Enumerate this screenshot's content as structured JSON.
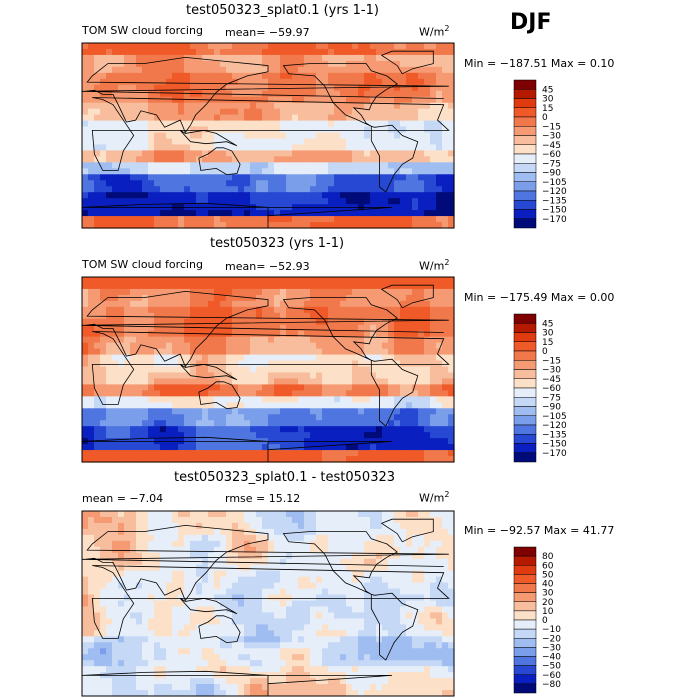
{
  "season": "DJF",
  "chart_data": [
    {
      "type": "heatmap",
      "title": "test050323_splat0.1 (yrs 1-1)",
      "variable": "TOM SW cloud forcing",
      "mean_text": "mean= −59.97",
      "units": "W/m",
      "units_sup": "2",
      "minmax_text": "Min = −187.51 Max =    0.10",
      "levels": [
        "45",
        "30",
        "15",
        "0",
        "−15",
        "−30",
        "−45",
        "−60",
        "−75",
        "−90",
        "−105",
        "−120",
        "−135",
        "−150",
        "−170"
      ],
      "colors": [
        "#7f0000",
        "#b51a00",
        "#e03a10",
        "#f05a28",
        "#f0784a",
        "#f59a72",
        "#f8bd9c",
        "#fde0c8",
        "#e6eefa",
        "#c5d8f5",
        "#9fbdf0",
        "#7a9eea",
        "#4f75e0",
        "#2648d2",
        "#0a1fbf",
        "#000a78"
      ]
    },
    {
      "type": "heatmap",
      "title": "test050323 (yrs 1-1)",
      "variable": "TOM SW cloud forcing",
      "mean_text": "mean= −52.93",
      "units": "W/m",
      "units_sup": "2",
      "minmax_text": "Min = −175.49 Max =    0.00",
      "levels": [
        "45",
        "30",
        "15",
        "0",
        "−15",
        "−30",
        "−45",
        "−60",
        "−75",
        "−90",
        "−105",
        "−120",
        "−135",
        "−150",
        "−170"
      ],
      "colors": [
        "#7f0000",
        "#b51a00",
        "#e03a10",
        "#f05a28",
        "#f0784a",
        "#f59a72",
        "#f8bd9c",
        "#fde0c8",
        "#e6eefa",
        "#c5d8f5",
        "#9fbdf0",
        "#7a9eea",
        "#4f75e0",
        "#2648d2",
        "#0a1fbf",
        "#000a78"
      ]
    },
    {
      "type": "heatmap",
      "title": "test050323_splat0.1 - test050323",
      "mean_text": "mean =   −7.04",
      "rmse_text": "rmse =  15.12",
      "units": "W/m",
      "units_sup": "2",
      "minmax_text": "Min = −92.57 Max =  41.77",
      "levels": [
        "80",
        "60",
        "50",
        "40",
        "30",
        "20",
        "10",
        "0",
        "−10",
        "−20",
        "−30",
        "−40",
        "−50",
        "−60",
        "−80"
      ],
      "colors": [
        "#7f0000",
        "#b51a00",
        "#e03a10",
        "#f05a28",
        "#f0784a",
        "#f59a72",
        "#f8bd9c",
        "#fde0c8",
        "#e6eefa",
        "#c5d8f5",
        "#9fbdf0",
        "#7a9eea",
        "#4f75e0",
        "#2648d2",
        "#0a1fbf",
        "#000a78"
      ]
    }
  ]
}
